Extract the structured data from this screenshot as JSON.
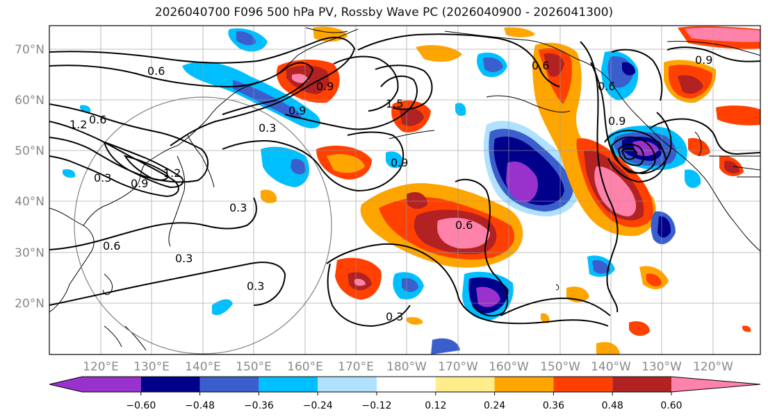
{
  "title": "2026040700 F096 500 hPa PV, Rossby Wave PC (2026040900 - 2026041300)",
  "lat_labels": [
    "70°N",
    "60°N",
    "50°N",
    "40°N",
    "30°N",
    "20°N"
  ],
  "lon_labels": [
    "120°E",
    "130°E",
    "140°E",
    "150°E",
    "160°E",
    "170°E",
    "180°W",
    "170°W",
    "160°W",
    "150°W",
    "140°W",
    "130°W",
    "120°W"
  ],
  "colorbar": {
    "colors": [
      "#9932cc",
      "#00008b",
      "#3a5fcd",
      "#00bfff",
      "#b0e2ff",
      "#ffffff",
      "#ffec8b",
      "#ffa500",
      "#ff4000",
      "#b22222",
      "#ff82ab"
    ],
    "tick_labels": [
      "−0.60",
      "−0.48",
      "−0.36",
      "−0.24",
      "−0.12",
      "0.12",
      "0.24",
      "0.36",
      "0.48",
      "0.60"
    ]
  },
  "contour_labels": [
    "0.6",
    "0.6",
    "1.2",
    "0.3",
    "0.3",
    "0.9",
    "0.3",
    "0.6",
    "0.3",
    "0.3",
    "0.3",
    "0.9",
    "1.2",
    "0.9",
    "0.6",
    "0.9",
    "0.6",
    "0.6",
    "0.9",
    "0.9",
    "1.5"
  ]
}
